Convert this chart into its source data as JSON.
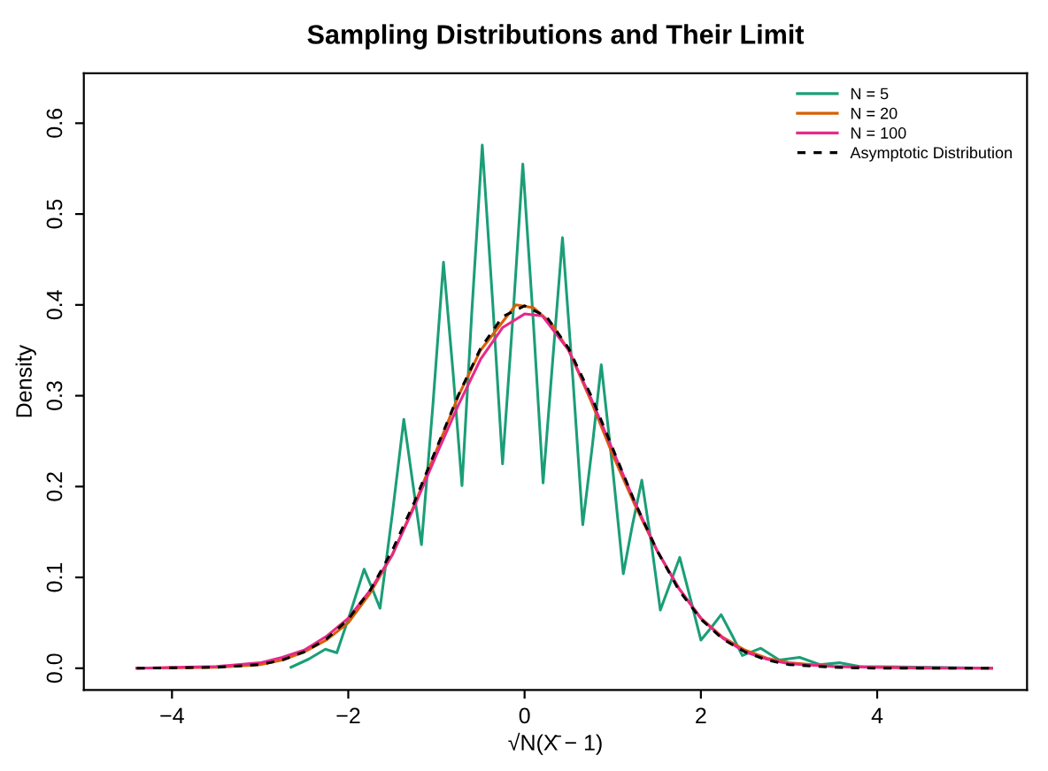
{
  "chart_data": {
    "type": "line",
    "title": "Sampling Distributions and Their Limit",
    "xlabel": "√N(X̄ − 1)",
    "ylabel": "Density",
    "xlim": [
      -5.0,
      5.7
    ],
    "ylim": [
      -0.024,
      0.655
    ],
    "xticks": [
      {
        "value": -4,
        "label": "−4"
      },
      {
        "value": -2,
        "label": "−2"
      },
      0,
      2,
      4
    ],
    "yticks": [
      {
        "value": 0,
        "label": "0.0"
      },
      0.1,
      0.2,
      0.3,
      0.4,
      0.5,
      0.6
    ],
    "grid": false,
    "legend": "top right",
    "marker": "none",
    "series": [
      {
        "name": "N = 5",
        "color": "#1b9e77",
        "line_style": "solid",
        "x": [
          -2.65,
          -2.45,
          -2.26,
          -2.13,
          -1.97,
          -1.82,
          -1.73,
          -1.64,
          -1.5,
          -1.37,
          -1.27,
          -1.17,
          -1.04,
          -0.92,
          -0.81,
          -0.71,
          -0.6,
          -0.48,
          -0.36,
          -0.25,
          -0.13,
          -0.02,
          0.1,
          0.21,
          0.32,
          0.43,
          0.55,
          0.66,
          0.77,
          0.87,
          1.0,
          1.12,
          1.22,
          1.33,
          1.44,
          1.54,
          1.65,
          1.76,
          1.88,
          2.0,
          2.12,
          2.23,
          2.35,
          2.47,
          2.68,
          2.89,
          3.12,
          3.35,
          3.57,
          3.8,
          5.3
        ],
        "values": [
          0.001,
          0.01,
          0.021,
          0.017,
          0.063,
          0.109,
          0.088,
          0.066,
          0.17,
          0.274,
          0.205,
          0.136,
          0.29,
          0.447,
          0.324,
          0.201,
          0.39,
          0.576,
          0.4,
          0.225,
          0.39,
          0.555,
          0.38,
          0.204,
          0.34,
          0.474,
          0.316,
          0.158,
          0.246,
          0.334,
          0.219,
          0.104,
          0.156,
          0.207,
          0.136,
          0.064,
          0.093,
          0.122,
          0.077,
          0.031,
          0.045,
          0.059,
          0.037,
          0.014,
          0.022,
          0.009,
          0.012,
          0.004,
          0.006,
          0.002,
          0.0
        ]
      },
      {
        "name": "N = 20",
        "color": "#d95f02",
        "line_style": "solid",
        "x": [
          -4.4,
          -3.5,
          -3.0,
          -2.75,
          -2.5,
          -2.25,
          -2.0,
          -1.75,
          -1.5,
          -1.25,
          -1.0,
          -0.75,
          -0.5,
          -0.3,
          -0.1,
          0.1,
          0.3,
          0.5,
          0.75,
          1.0,
          1.25,
          1.5,
          1.75,
          2.0,
          2.25,
          2.5,
          2.75,
          3.0,
          3.5,
          4.5,
          5.3
        ],
        "values": [
          0.0,
          0.001,
          0.004,
          0.009,
          0.018,
          0.031,
          0.05,
          0.083,
          0.125,
          0.18,
          0.24,
          0.3,
          0.35,
          0.375,
          0.4,
          0.397,
          0.38,
          0.35,
          0.295,
          0.235,
          0.18,
          0.13,
          0.088,
          0.055,
          0.034,
          0.02,
          0.011,
          0.006,
          0.002,
          0.0,
          0.0
        ]
      },
      {
        "name": "N = 100",
        "color": "#e7298a",
        "line_style": "solid",
        "x": [
          -4.4,
          -3.5,
          -3.0,
          -2.75,
          -2.5,
          -2.25,
          -2.0,
          -1.75,
          -1.5,
          -1.25,
          -1.0,
          -0.75,
          -0.5,
          -0.25,
          0.0,
          0.2,
          0.5,
          0.75,
          1.0,
          1.25,
          1.5,
          1.75,
          2.0,
          2.25,
          2.5,
          2.75,
          3.0,
          3.5,
          4.0,
          5.3
        ],
        "values": [
          0.0,
          0.002,
          0.006,
          0.012,
          0.02,
          0.035,
          0.055,
          0.086,
          0.125,
          0.178,
          0.235,
          0.29,
          0.34,
          0.375,
          0.39,
          0.388,
          0.35,
          0.298,
          0.24,
          0.183,
          0.13,
          0.088,
          0.055,
          0.033,
          0.018,
          0.01,
          0.005,
          0.002,
          0.001,
          0.0
        ]
      },
      {
        "name": "Asymptotic Distribution",
        "color": "#000000",
        "line_style": "dashed",
        "x": [
          -4.4,
          -3.5,
          -3.0,
          -2.75,
          -2.5,
          -2.25,
          -2.0,
          -1.75,
          -1.5,
          -1.25,
          -1.0,
          -0.75,
          -0.5,
          -0.25,
          0.0,
          0.25,
          0.5,
          0.75,
          1.0,
          1.25,
          1.5,
          1.75,
          2.0,
          2.25,
          2.5,
          2.75,
          3.0,
          3.5,
          4.0,
          5.3
        ],
        "values": [
          0.0,
          0.001,
          0.004,
          0.009,
          0.018,
          0.032,
          0.054,
          0.086,
          0.13,
          0.183,
          0.242,
          0.301,
          0.352,
          0.387,
          0.399,
          0.387,
          0.352,
          0.301,
          0.242,
          0.183,
          0.13,
          0.086,
          0.054,
          0.032,
          0.018,
          0.009,
          0.004,
          0.001,
          0.0,
          0.0
        ]
      }
    ]
  }
}
